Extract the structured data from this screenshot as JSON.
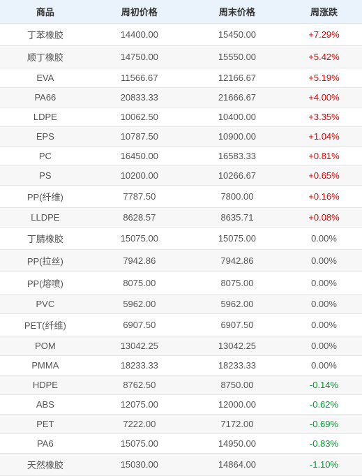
{
  "table": {
    "columns": [
      {
        "key": "name",
        "label": "商品"
      },
      {
        "key": "start",
        "label": "周初价格"
      },
      {
        "key": "end",
        "label": "周末价格"
      },
      {
        "key": "change",
        "label": "周涨跌"
      }
    ],
    "rows": [
      {
        "name": "丁苯橡胶",
        "start": "14400.00",
        "end": "15450.00",
        "change": "+7.29%",
        "dir": "pos"
      },
      {
        "name": "顺丁橡胶",
        "start": "14750.00",
        "end": "15550.00",
        "change": "+5.42%",
        "dir": "pos"
      },
      {
        "name": "EVA",
        "start": "11566.67",
        "end": "12166.67",
        "change": "+5.19%",
        "dir": "pos"
      },
      {
        "name": "PA66",
        "start": "20833.33",
        "end": "21666.67",
        "change": "+4.00%",
        "dir": "pos"
      },
      {
        "name": "LDPE",
        "start": "10062.50",
        "end": "10400.00",
        "change": "+3.35%",
        "dir": "pos"
      },
      {
        "name": "EPS",
        "start": "10787.50",
        "end": "10900.00",
        "change": "+1.04%",
        "dir": "pos"
      },
      {
        "name": "PC",
        "start": "16450.00",
        "end": "16583.33",
        "change": "+0.81%",
        "dir": "pos"
      },
      {
        "name": "PS",
        "start": "10200.00",
        "end": "10266.67",
        "change": "+0.65%",
        "dir": "pos"
      },
      {
        "name": "PP(纤维)",
        "start": "7787.50",
        "end": "7800.00",
        "change": "+0.16%",
        "dir": "pos"
      },
      {
        "name": "LLDPE",
        "start": "8628.57",
        "end": "8635.71",
        "change": "+0.08%",
        "dir": "pos"
      },
      {
        "name": "丁腈橡胶",
        "start": "15075.00",
        "end": "15075.00",
        "change": "0.00%",
        "dir": "neu"
      },
      {
        "name": "PP(拉丝)",
        "start": "7942.86",
        "end": "7942.86",
        "change": "0.00%",
        "dir": "neu"
      },
      {
        "name": "PP(熔喷)",
        "start": "8075.00",
        "end": "8075.00",
        "change": "0.00%",
        "dir": "neu"
      },
      {
        "name": "PVC",
        "start": "5962.00",
        "end": "5962.00",
        "change": "0.00%",
        "dir": "neu"
      },
      {
        "name": "PET(纤维)",
        "start": "6907.50",
        "end": "6907.50",
        "change": "0.00%",
        "dir": "neu"
      },
      {
        "name": "POM",
        "start": "13042.25",
        "end": "13042.25",
        "change": "0.00%",
        "dir": "neu"
      },
      {
        "name": "PMMA",
        "start": "18233.33",
        "end": "18233.33",
        "change": "0.00%",
        "dir": "neu"
      },
      {
        "name": "HDPE",
        "start": "8762.50",
        "end": "8750.00",
        "change": "-0.14%",
        "dir": "neg"
      },
      {
        "name": "ABS",
        "start": "12075.00",
        "end": "12000.00",
        "change": "-0.62%",
        "dir": "neg"
      },
      {
        "name": "PET",
        "start": "7222.00",
        "end": "7172.00",
        "change": "-0.69%",
        "dir": "neg"
      },
      {
        "name": "PA6",
        "start": "15075.00",
        "end": "14950.00",
        "change": "-0.83%",
        "dir": "neg"
      },
      {
        "name": "天然橡胶",
        "start": "15030.00",
        "end": "14864.00",
        "change": "-1.10%",
        "dir": "neg"
      }
    ],
    "style": {
      "header_bg": "#eaf3fb",
      "header_text": "#333333",
      "row_alt_bg": "#f7f7f7",
      "border_color": "#e5e5e5",
      "body_text": "#555555",
      "positive_color": "#e60000",
      "negative_color": "#009933",
      "font_size_pt": 10,
      "col_widths_pct": [
        25,
        27,
        27,
        21
      ]
    }
  }
}
